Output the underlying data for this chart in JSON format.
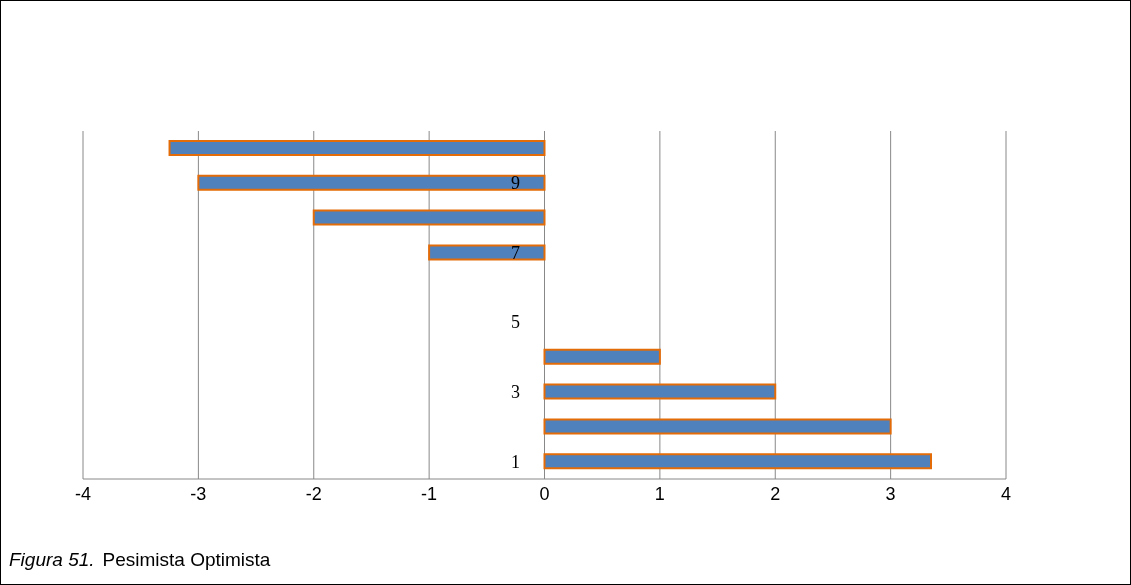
{
  "chart_data": {
    "type": "bar",
    "orientation": "horizontal",
    "categories": [
      null,
      "9",
      null,
      "7",
      null,
      "5",
      null,
      "3",
      null,
      "1"
    ],
    "values": [
      -3.25,
      -3,
      -2,
      -1,
      null,
      null,
      1,
      2,
      3,
      3.35
    ],
    "color": "#4f81bd",
    "xlim": [
      -4,
      4
    ],
    "xticks": [
      -4,
      -3,
      -2,
      -1,
      0,
      1,
      2,
      3,
      4
    ],
    "grid": "x",
    "annotations": [
      "Figura 51.",
      "Pesimista Optimista"
    ]
  }
}
